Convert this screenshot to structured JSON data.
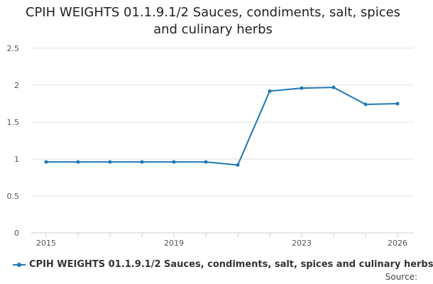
{
  "chart_data": {
    "type": "line",
    "title_lines": [
      "CPIH WEIGHTS 01.1.9.1/2 Sauces, condiments, salt, spices",
      "and culinary herbs"
    ],
    "x": [
      2015,
      2016,
      2017,
      2018,
      2019,
      2020,
      2021,
      2022,
      2023,
      2024,
      2025,
      2026
    ],
    "series": [
      {
        "name": "CPIH WEIGHTS 01.1.9.1/2 Sauces, condiments, salt, spices and culinary herbs",
        "values": [
          0.96,
          0.96,
          0.96,
          0.96,
          0.96,
          0.96,
          0.92,
          1.92,
          1.96,
          1.97,
          1.74,
          1.75
        ],
        "color": "#1f78b4"
      }
    ],
    "x_tick_labels": [
      "2015",
      "2019",
      "2023",
      "2026"
    ],
    "y_ticks": [
      "0",
      "0.5",
      "1",
      "1.5",
      "2",
      "2.5"
    ],
    "ylim": [
      0,
      2.5
    ],
    "xlim": [
      2015,
      2026
    ],
    "grid": true,
    "legend_position": "bottom-left",
    "source_label": "Source:"
  }
}
